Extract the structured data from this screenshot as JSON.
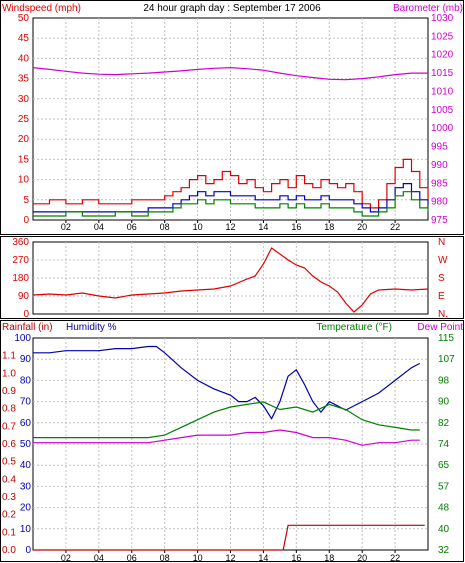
{
  "colors": {
    "wind": "#e00000",
    "gust_avg": "#0000c0",
    "wind_low": "#008000",
    "barometer": "#d000d0",
    "direction": "#e00000",
    "rain": "#c00000",
    "humidity": "#0000b0",
    "temperature": "#008000",
    "dewpoint": "#d000d0",
    "grid": "#c0c0c0",
    "frame": "#000000"
  },
  "chart_data": [
    {
      "type": "line",
      "title": "24 hour graph day : September 17 2006",
      "left_axis_label": "Windspeed (mph)",
      "right_axis_label": "Barometer (mb)",
      "x_ticks": [
        "02",
        "04",
        "06",
        "08",
        "10",
        "12",
        "14",
        "16",
        "18",
        "20",
        "22"
      ],
      "xlim": [
        0,
        24
      ],
      "left_ylim": [
        0,
        50
      ],
      "left_ticks": [
        "0",
        "5",
        "10",
        "15",
        "20",
        "25",
        "30",
        "35",
        "40",
        "45",
        "50"
      ],
      "right_ylim": [
        975,
        1030
      ],
      "right_ticks": [
        "975",
        "980",
        "985",
        "990",
        "995",
        "1000",
        "1005",
        "1010",
        "1015",
        "1020",
        "1025",
        "1030"
      ],
      "grid": true,
      "series": [
        {
          "key": "wind_gust",
          "axis": "left",
          "x": [
            0,
            1,
            2,
            3,
            4,
            5,
            6,
            7,
            8,
            8.5,
            9,
            9.5,
            10,
            10.5,
            11,
            11.5,
            12,
            12.5,
            13,
            13.5,
            14,
            14.5,
            15,
            15.5,
            16,
            16.5,
            17,
            17.5,
            18,
            18.5,
            19,
            19.5,
            20,
            20.5,
            21,
            21.5,
            22,
            22.5,
            23,
            23.5,
            24
          ],
          "values": [
            4,
            5,
            4,
            5,
            4,
            4,
            5,
            5,
            6,
            7,
            8,
            10,
            11,
            9,
            10,
            12,
            11,
            9,
            10,
            8,
            7,
            9,
            10,
            8,
            11,
            9,
            8,
            10,
            9,
            8,
            9,
            7,
            4,
            3,
            5,
            9,
            13,
            15,
            12,
            8,
            5
          ]
        },
        {
          "key": "wind_avg",
          "axis": "left",
          "x": [
            0,
            1,
            2,
            3,
            4,
            5,
            6,
            7,
            8,
            8.5,
            9,
            9.5,
            10,
            10.5,
            11,
            11.5,
            12,
            12.5,
            13,
            13.5,
            14,
            14.5,
            15,
            15.5,
            16,
            16.5,
            17,
            17.5,
            18,
            18.5,
            19,
            19.5,
            20,
            20.5,
            21,
            21.5,
            22,
            22.5,
            23,
            23.5,
            24
          ],
          "values": [
            2,
            2,
            2,
            2,
            2,
            2,
            2,
            3,
            3,
            4,
            5,
            6,
            7,
            6,
            7,
            7,
            6,
            6,
            6,
            5,
            5,
            5,
            6,
            5,
            6,
            5,
            5,
            6,
            5,
            5,
            5,
            4,
            3,
            2,
            3,
            5,
            8,
            9,
            7,
            5,
            4
          ]
        },
        {
          "key": "wind_low",
          "axis": "left",
          "x": [
            0,
            1,
            2,
            3,
            4,
            5,
            6,
            7,
            8,
            8.5,
            9,
            9.5,
            10,
            10.5,
            11,
            11.5,
            12,
            12.5,
            13,
            13.5,
            14,
            14.5,
            15,
            15.5,
            16,
            16.5,
            17,
            17.5,
            18,
            18.5,
            19,
            19.5,
            20,
            20.5,
            21,
            21.5,
            22,
            22.5,
            23,
            23.5,
            24
          ],
          "values": [
            1,
            1,
            2,
            1,
            1,
            2,
            1,
            2,
            2,
            3,
            4,
            4,
            5,
            4,
            5,
            5,
            4,
            4,
            4,
            3,
            3,
            3,
            4,
            3,
            4,
            3,
            3,
            4,
            3,
            3,
            3,
            2,
            1,
            1,
            2,
            3,
            6,
            7,
            5,
            3,
            2
          ]
        },
        {
          "key": "barometer",
          "axis": "right",
          "x": [
            0,
            1,
            2,
            3,
            4,
            5,
            6,
            7,
            8,
            9,
            10,
            11,
            12,
            13,
            14,
            15,
            16,
            17,
            18,
            19,
            20,
            21,
            22,
            23,
            24
          ],
          "values": [
            1016.5,
            1016.0,
            1015.5,
            1015.0,
            1014.7,
            1014.6,
            1014.8,
            1015.0,
            1015.3,
            1015.6,
            1016.0,
            1016.3,
            1016.5,
            1016.2,
            1015.8,
            1015.0,
            1014.3,
            1013.8,
            1013.3,
            1013.2,
            1013.5,
            1014.0,
            1014.6,
            1015.0,
            1015.0
          ]
        }
      ]
    },
    {
      "type": "line",
      "left_ylim": [
        0,
        360
      ],
      "left_ticks": [
        "0",
        "90",
        "180",
        "270",
        "360"
      ],
      "right_ticks": [
        "N",
        "W",
        "S",
        "E",
        "N."
      ],
      "xlim": [
        0,
        24
      ],
      "grid": true,
      "series": [
        {
          "key": "wind_direction",
          "axis": "left",
          "x": [
            0,
            1,
            2,
            3,
            4,
            5,
            6,
            7,
            8,
            9,
            10,
            11,
            12,
            13,
            13.5,
            14,
            14.5,
            15,
            15.5,
            16,
            16.5,
            17,
            17.5,
            18,
            18.5,
            19,
            19.5,
            20,
            20.5,
            21,
            22,
            23,
            24
          ],
          "values": [
            95,
            100,
            95,
            105,
            90,
            80,
            95,
            100,
            105,
            115,
            120,
            125,
            140,
            175,
            190,
            250,
            330,
            300,
            270,
            245,
            230,
            190,
            160,
            140,
            110,
            55,
            10,
            45,
            100,
            120,
            125,
            120,
            125
          ]
        }
      ]
    },
    {
      "type": "line",
      "left_axis_label": "Rainfall (in)",
      "humidity_label": "Humidity %",
      "right_axis_label": "Temperature  (°F)",
      "dewpoint_label": "Dew Point",
      "x_ticks": [
        "02",
        "04",
        "06",
        "08",
        "10",
        "12",
        "14",
        "16",
        "18",
        "20",
        "22"
      ],
      "xlim": [
        0,
        24
      ],
      "rain_ylim": [
        0,
        1.2
      ],
      "rain_ticks": [
        "0.0",
        "0.1",
        "0.2",
        "0.3",
        "0.4",
        "0.5",
        "0.6",
        "0.7",
        "0.8",
        "0.9",
        "1.0",
        "1.1"
      ],
      "humidity_ylim": [
        0,
        100
      ],
      "humidity_ticks": [
        "0",
        "10",
        "20",
        "30",
        "40",
        "50",
        "60",
        "70",
        "80",
        "90",
        "100"
      ],
      "temp_ylim": [
        32,
        115
      ],
      "temp_ticks": [
        "32",
        "40",
        "48",
        "57",
        "65",
        "74",
        "82",
        "90",
        "98",
        "107",
        "115"
      ],
      "grid": true,
      "series": [
        {
          "key": "rainfall",
          "axis": "rain",
          "x": [
            0,
            15.2,
            15.5,
            23.8
          ],
          "values": [
            0.0,
            0.0,
            0.14,
            0.14
          ]
        },
        {
          "key": "humidity",
          "axis": "humidity",
          "x": [
            0,
            1,
            2,
            3,
            4,
            5,
            6,
            7,
            7.5,
            8,
            9,
            10,
            11,
            12,
            12.5,
            13,
            13.5,
            14,
            14.5,
            15,
            15.5,
            16,
            16.5,
            17,
            17.5,
            18,
            18.5,
            19,
            20,
            21,
            22,
            23,
            23.5
          ],
          "values": [
            93,
            93,
            94,
            94,
            94,
            95,
            95,
            96,
            96,
            93,
            86,
            80,
            76,
            73,
            70,
            70,
            72,
            68,
            62,
            70,
            82,
            85,
            78,
            70,
            65,
            70,
            68,
            66,
            70,
            74,
            80,
            86,
            88
          ]
        },
        {
          "key": "temperature",
          "axis": "temp",
          "x": [
            0,
            1,
            2,
            3,
            4,
            5,
            6,
            7,
            8,
            9,
            10,
            11,
            12,
            13,
            14,
            15,
            16,
            17,
            18,
            19,
            20,
            21,
            22,
            23,
            23.5
          ],
          "values": [
            76,
            76,
            76,
            76,
            76,
            76,
            76,
            76,
            77,
            80,
            83,
            86,
            88,
            89,
            90,
            87,
            88,
            86,
            89,
            87,
            83,
            81,
            80,
            79,
            79
          ]
        },
        {
          "key": "dewpoint",
          "axis": "temp",
          "x": [
            0,
            1,
            2,
            3,
            4,
            5,
            6,
            7,
            8,
            9,
            10,
            11,
            12,
            13,
            14,
            15,
            16,
            17,
            18,
            19,
            20,
            21,
            22,
            23,
            23.5
          ],
          "values": [
            74,
            74,
            74,
            74,
            74,
            74,
            74,
            74,
            75,
            76,
            77,
            77,
            77,
            78,
            78,
            79,
            78,
            76,
            76,
            75,
            73,
            74,
            74,
            75,
            75
          ]
        }
      ]
    }
  ]
}
